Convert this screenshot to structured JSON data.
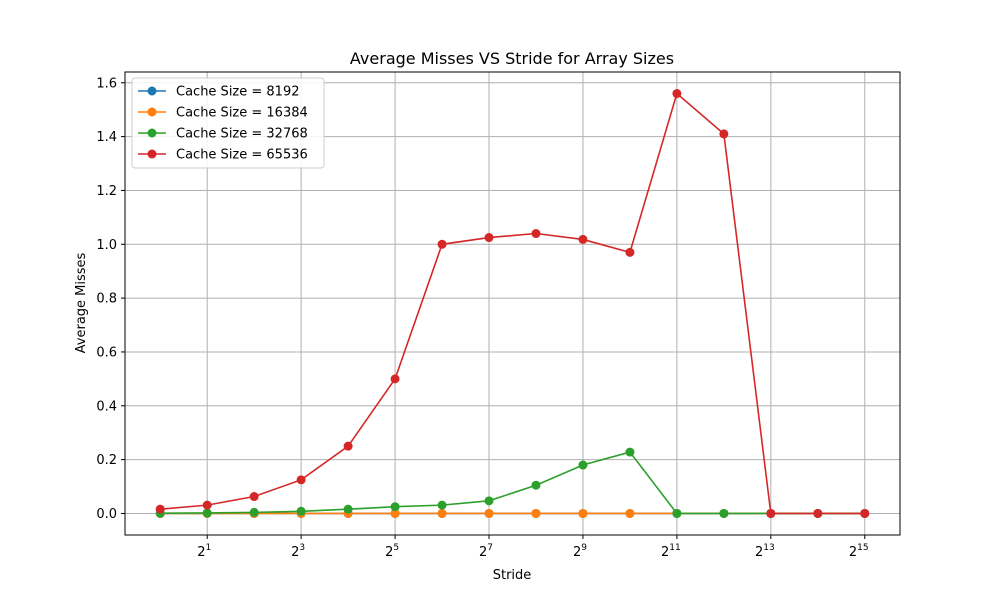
{
  "chart_data": {
    "type": "line",
    "title": "Average Misses VS Stride for Array Sizes",
    "xlabel": "Stride",
    "ylabel": "Average Misses",
    "x_scale": "log2",
    "x": [
      1,
      2,
      4,
      8,
      16,
      32,
      64,
      128,
      256,
      512,
      1024,
      2048,
      4096,
      8192,
      16384,
      32768
    ],
    "x_ticks": [
      {
        "exp": 1,
        "base": "2",
        "sup": "1"
      },
      {
        "exp": 3,
        "base": "2",
        "sup": "3"
      },
      {
        "exp": 5,
        "base": "2",
        "sup": "5"
      },
      {
        "exp": 7,
        "base": "2",
        "sup": "7"
      },
      {
        "exp": 9,
        "base": "2",
        "sup": "9"
      },
      {
        "exp": 11,
        "base": "2",
        "sup": "11"
      },
      {
        "exp": 13,
        "base": "2",
        "sup": "13"
      },
      {
        "exp": 15,
        "base": "2",
        "sup": "15"
      }
    ],
    "ylim": [
      -0.08,
      1.64
    ],
    "y_ticks": [
      {
        "value": 0.0,
        "label": "0.0"
      },
      {
        "value": 0.2,
        "label": "0.2"
      },
      {
        "value": 0.4,
        "label": "0.4"
      },
      {
        "value": 0.6,
        "label": "0.6"
      },
      {
        "value": 0.8,
        "label": "0.8"
      },
      {
        "value": 1.0,
        "label": "1.0"
      },
      {
        "value": 1.2,
        "label": "1.2"
      },
      {
        "value": 1.4,
        "label": "1.4"
      },
      {
        "value": 1.6,
        "label": "1.6"
      }
    ],
    "grid": true,
    "legend_position": "top-left",
    "series": [
      {
        "name": "Cache Size = 8192",
        "color": "#1f77b4",
        "values": [
          0,
          0,
          0,
          0,
          0,
          0,
          0,
          0,
          0,
          0,
          0,
          0,
          0,
          0,
          0,
          0
        ]
      },
      {
        "name": "Cache Size = 16384",
        "color": "#ff7f0e",
        "values": [
          0,
          0,
          0,
          0,
          0,
          0,
          0,
          0,
          0,
          0,
          0,
          0,
          0,
          0,
          0,
          0
        ]
      },
      {
        "name": "Cache Size = 32768",
        "color": "#2ca02c",
        "values": [
          0.001,
          0.002,
          0.004,
          0.008,
          0.016,
          0.025,
          0.031,
          0.047,
          0.105,
          0.18,
          0.228,
          0,
          0,
          0,
          0,
          0
        ]
      },
      {
        "name": "Cache Size = 65536",
        "color": "#d62728",
        "values": [
          0.016,
          0.031,
          0.063,
          0.125,
          0.25,
          0.5,
          1.0,
          1.025,
          1.04,
          1.018,
          0.97,
          1.56,
          1.41,
          0,
          0,
          0
        ]
      }
    ]
  }
}
